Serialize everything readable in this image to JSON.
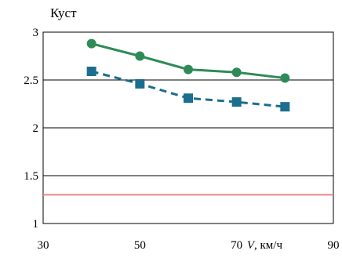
{
  "chart_data": {
    "type": "line",
    "title": "",
    "ylabel": "Куст",
    "xlabel": {
      "italic": "V",
      "rest": ", км/ч"
    },
    "xlim": [
      30,
      90
    ],
    "ylim": [
      1,
      3
    ],
    "xticks": [
      30,
      50,
      70,
      90
    ],
    "yticks": [
      1,
      1.5,
      2,
      2.5,
      3
    ],
    "x_tick_labels": [
      "30",
      "50",
      "70",
      "90"
    ],
    "y_tick_labels": [
      "1",
      "1.5",
      "2",
      "2.5",
      "3"
    ],
    "grid": "horizontal",
    "series": [
      {
        "x": [
          40,
          50,
          60,
          70,
          80
        ],
        "y": [
          2.88,
          2.75,
          2.61,
          2.58,
          2.52
        ],
        "color": "#2e8b57",
        "marker": "circle",
        "line": "solid"
      },
      {
        "x": [
          40,
          50,
          60,
          70,
          80
        ],
        "y": [
          2.59,
          2.46,
          2.31,
          2.27,
          2.22
        ],
        "color": "#1b6e8e",
        "marker": "square",
        "line": "dashed"
      }
    ],
    "reference_line": {
      "y": 1.3,
      "color": "#f08080"
    }
  }
}
